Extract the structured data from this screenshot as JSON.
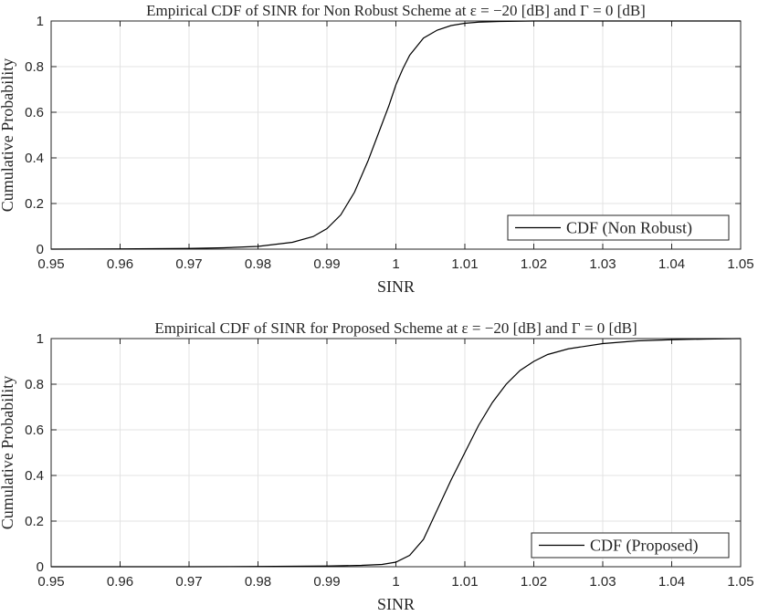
{
  "chart_data": [
    {
      "type": "line",
      "title": "Empirical CDF of SINR for Non Robust Scheme at ε = −20 [dB] and Γ = 0 [dB]",
      "xlabel": "SINR",
      "ylabel": "Cumulative Probability",
      "xlim": [
        0.95,
        1.05
      ],
      "ylim": [
        0,
        1
      ],
      "xticks": [
        "0.95",
        "0.96",
        "0.97",
        "0.98",
        "0.99",
        "1",
        "1.01",
        "1.02",
        "1.03",
        "1.04",
        "1.05"
      ],
      "yticks": [
        "0",
        "0.2",
        "0.4",
        "0.6",
        "0.8",
        "1"
      ],
      "grid": true,
      "legend_position": "bottom-right",
      "series": [
        {
          "name": "CDF (Non Robust)",
          "color": "#000000",
          "x": [
            0.95,
            0.96,
            0.97,
            0.975,
            0.98,
            0.985,
            0.988,
            0.99,
            0.992,
            0.994,
            0.996,
            0.998,
            0.999,
            1.0,
            1.001,
            1.002,
            1.004,
            1.006,
            1.008,
            1.01,
            1.012,
            1.015,
            1.02,
            1.03,
            1.05
          ],
          "y": [
            0.0,
            0.001,
            0.003,
            0.006,
            0.012,
            0.03,
            0.055,
            0.09,
            0.15,
            0.25,
            0.39,
            0.55,
            0.63,
            0.72,
            0.79,
            0.85,
            0.925,
            0.96,
            0.98,
            0.99,
            0.995,
            0.998,
            1.0,
            1.0,
            1.0
          ]
        }
      ]
    },
    {
      "type": "line",
      "title": "Empirical CDF of SINR for Proposed Scheme at ε = −20 [dB] and Γ = 0 [dB]",
      "xlabel": "SINR",
      "ylabel": "Cumulative Probability",
      "xlim": [
        0.95,
        1.05
      ],
      "ylim": [
        0,
        1
      ],
      "xticks": [
        "0.95",
        "0.96",
        "0.97",
        "0.98",
        "0.99",
        "1",
        "1.01",
        "1.02",
        "1.03",
        "1.04",
        "1.05"
      ],
      "yticks": [
        "0",
        "0.2",
        "0.4",
        "0.6",
        "0.8",
        "1"
      ],
      "grid": true,
      "legend_position": "bottom-right",
      "series": [
        {
          "name": "CDF (Proposed)",
          "color": "#000000",
          "x": [
            0.95,
            0.97,
            0.98,
            0.99,
            0.995,
            0.998,
            1.0,
            1.002,
            1.004,
            1.006,
            1.008,
            1.01,
            1.012,
            1.014,
            1.016,
            1.018,
            1.02,
            1.022,
            1.025,
            1.03,
            1.035,
            1.04,
            1.045,
            1.05
          ],
          "y": [
            0.0,
            0.0,
            0.001,
            0.003,
            0.006,
            0.01,
            0.02,
            0.05,
            0.12,
            0.25,
            0.38,
            0.5,
            0.62,
            0.72,
            0.8,
            0.86,
            0.9,
            0.93,
            0.955,
            0.978,
            0.99,
            0.995,
            0.998,
            1.0
          ]
        }
      ]
    }
  ]
}
